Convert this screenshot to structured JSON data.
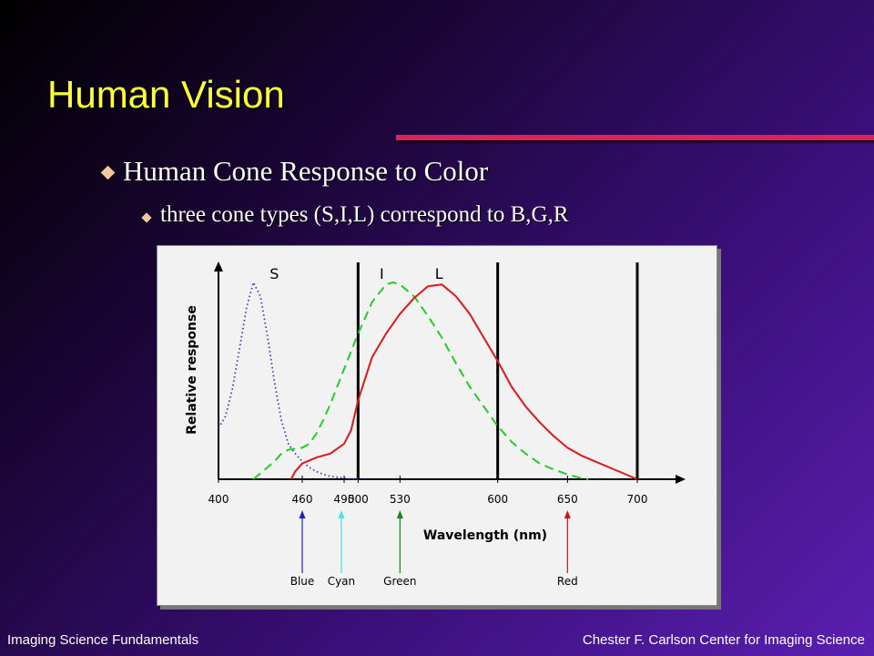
{
  "slide": {
    "title": "Human Vision",
    "bullet_1": "Human Cone Response to Color",
    "bullet_2": "three cone types (S,I,L) correspond to B,G,R",
    "footer_left": "Imaging Science Fundamentals",
    "footer_right": "Chester F. Carlson Center for Imaging Science",
    "colors": {
      "title": "#ffff33",
      "rule": "#e0205a",
      "bullet": "#f0c8a0"
    }
  },
  "chart_data": {
    "type": "line",
    "title": "",
    "xlabel": "Wavelength (nm)",
    "ylabel": "Relative response",
    "xlim": [
      400,
      720
    ],
    "ylim": [
      0,
      1
    ],
    "xticks": [
      400,
      460,
      490,
      500,
      530,
      600,
      650,
      700
    ],
    "vertical_lines": [
      500,
      600,
      700
    ],
    "series": [
      {
        "name": "S",
        "color": "#3040c0",
        "style": "dotted",
        "x": [
          400,
          405,
          410,
          415,
          420,
          425,
          430,
          435,
          440,
          445,
          450,
          455,
          460,
          465,
          470,
          475,
          480,
          485,
          490,
          495,
          500
        ],
        "y": [
          0.26,
          0.32,
          0.46,
          0.66,
          0.87,
          1.0,
          0.93,
          0.73,
          0.5,
          0.3,
          0.18,
          0.13,
          0.09,
          0.06,
          0.04,
          0.025,
          0.015,
          0.01,
          0.005,
          0.002,
          0.0
        ]
      },
      {
        "name": "I",
        "color": "#20d020",
        "style": "dashed",
        "x": [
          425,
          430,
          435,
          440,
          445,
          450,
          460,
          465,
          470,
          475,
          480,
          490,
          500,
          510,
          520,
          525,
          530,
          540,
          550,
          560,
          570,
          580,
          590,
          600,
          610,
          620,
          630,
          640,
          650,
          660,
          665
        ],
        "y": [
          0.0,
          0.03,
          0.06,
          0.09,
          0.13,
          0.15,
          0.16,
          0.18,
          0.23,
          0.3,
          0.38,
          0.56,
          0.74,
          0.9,
          0.99,
          1.0,
          0.99,
          0.93,
          0.83,
          0.72,
          0.59,
          0.47,
          0.37,
          0.27,
          0.19,
          0.13,
          0.08,
          0.05,
          0.025,
          0.005,
          0.0
        ]
      },
      {
        "name": "L",
        "color": "#e01818",
        "style": "solid",
        "x": [
          452,
          455,
          460,
          470,
          480,
          490,
          495,
          500,
          510,
          520,
          530,
          540,
          550,
          560,
          570,
          580,
          590,
          600,
          610,
          620,
          630,
          640,
          650,
          660,
          670,
          680,
          690,
          700
        ],
        "y": [
          0.0,
          0.04,
          0.08,
          0.11,
          0.13,
          0.18,
          0.25,
          0.4,
          0.62,
          0.74,
          0.84,
          0.92,
          0.98,
          0.99,
          0.93,
          0.84,
          0.72,
          0.6,
          0.47,
          0.37,
          0.29,
          0.22,
          0.16,
          0.12,
          0.09,
          0.06,
          0.03,
          0.0
        ]
      }
    ],
    "curve_labels": [
      {
        "text": "S",
        "x": 440
      },
      {
        "text": "I",
        "x": 517
      },
      {
        "text": "L",
        "x": 558
      }
    ],
    "markers": [
      {
        "label": "Blue",
        "x": 460,
        "color": "#2020c0"
      },
      {
        "label": "Cyan",
        "x": 488,
        "color": "#40e8e8"
      },
      {
        "label": "Green",
        "x": 530,
        "color": "#108810"
      },
      {
        "label": "Red",
        "x": 650,
        "color": "#d01010"
      }
    ]
  }
}
